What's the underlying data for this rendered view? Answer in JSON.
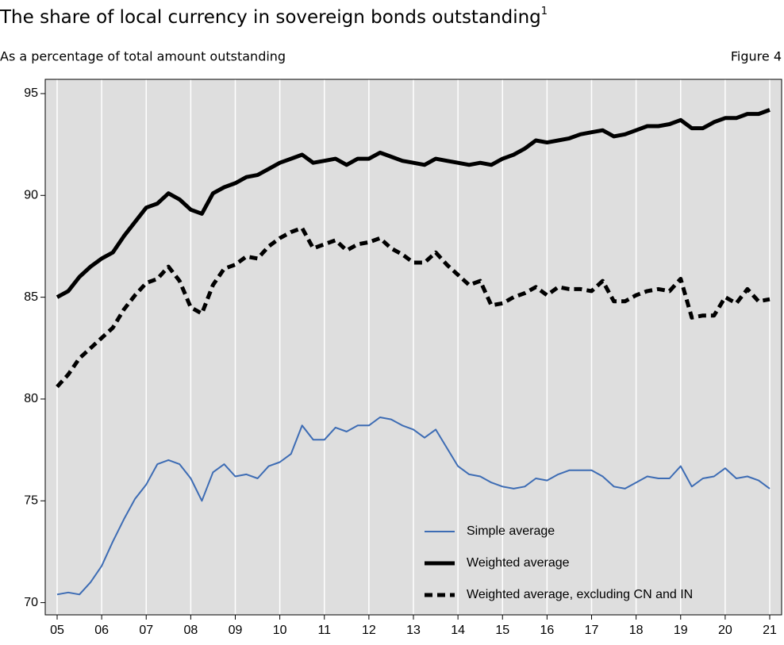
{
  "chart_data": {
    "type": "line",
    "title": "The share of local currency in sovereign bonds outstanding",
    "title_note": "1",
    "subtitle": "As a percentage of total amount outstanding",
    "figure_label": "Figure 4",
    "categories": [
      "05",
      null,
      null,
      null,
      "06",
      null,
      null,
      null,
      "07",
      null,
      null,
      null,
      "08",
      null,
      null,
      null,
      "09",
      null,
      null,
      null,
      "10",
      null,
      null,
      null,
      "11",
      null,
      null,
      null,
      "12",
      null,
      null,
      null,
      "13",
      null,
      null,
      null,
      "14",
      null,
      null,
      null,
      "15",
      null,
      null,
      null,
      "16",
      null,
      null,
      null,
      "17",
      null,
      null,
      null,
      "18",
      null,
      null,
      null,
      "19",
      null,
      null,
      null,
      "20",
      null,
      null,
      null,
      "21"
    ],
    "series": [
      {
        "name": "Simple average",
        "color": "#3d6cb4",
        "width": 2,
        "dash": false,
        "values": [
          70.4,
          70.5,
          70.4,
          71.0,
          71.8,
          73.0,
          74.1,
          75.1,
          75.8,
          76.8,
          77.0,
          76.8,
          76.1,
          75.0,
          76.4,
          76.8,
          76.2,
          76.3,
          76.1,
          76.7,
          76.9,
          77.3,
          78.7,
          78.0,
          78.0,
          78.6,
          78.4,
          78.7,
          78.7,
          79.1,
          79.0,
          78.7,
          78.5,
          78.1,
          78.5,
          77.6,
          76.7,
          76.3,
          76.2,
          75.9,
          75.7,
          75.6,
          75.7,
          76.1,
          76.0,
          76.3,
          76.5,
          76.5,
          76.5,
          76.2,
          75.7,
          75.6,
          75.9,
          76.2,
          76.1,
          76.1,
          76.7,
          75.7,
          76.1,
          76.2,
          76.6,
          76.1,
          76.2,
          76.0,
          75.6
        ]
      },
      {
        "name": "Weighted average",
        "color": "#000000",
        "width": 5,
        "dash": false,
        "values": [
          85.0,
          85.3,
          86.0,
          86.5,
          86.9,
          87.2,
          88.0,
          88.7,
          89.4,
          89.6,
          90.1,
          89.8,
          89.3,
          89.1,
          90.1,
          90.4,
          90.6,
          90.9,
          91.0,
          91.3,
          91.6,
          91.8,
          92.0,
          91.6,
          91.7,
          91.8,
          91.5,
          91.8,
          91.8,
          92.1,
          91.9,
          91.7,
          91.6,
          91.5,
          91.8,
          91.7,
          91.6,
          91.5,
          91.6,
          91.5,
          91.8,
          92.0,
          92.3,
          92.7,
          92.6,
          92.7,
          92.8,
          93.0,
          93.1,
          93.2,
          92.9,
          93.0,
          93.2,
          93.4,
          93.4,
          93.5,
          93.7,
          93.3,
          93.3,
          93.6,
          93.8,
          93.8,
          94.0,
          94.0,
          94.2
        ]
      },
      {
        "name": "Weighted average, excluding CN and IN",
        "color": "#000000",
        "width": 5,
        "dash": true,
        "values": [
          80.6,
          81.2,
          82.0,
          82.5,
          83.0,
          83.5,
          84.4,
          85.1,
          85.7,
          85.9,
          86.5,
          85.8,
          84.5,
          84.2,
          85.6,
          86.4,
          86.6,
          87.0,
          86.9,
          87.5,
          87.9,
          88.2,
          88.4,
          87.4,
          87.6,
          87.8,
          87.3,
          87.6,
          87.7,
          87.9,
          87.4,
          87.1,
          86.7,
          86.7,
          87.2,
          86.6,
          86.1,
          85.6,
          85.8,
          84.6,
          84.7,
          85.0,
          85.2,
          85.5,
          85.1,
          85.5,
          85.4,
          85.4,
          85.3,
          85.8,
          84.8,
          84.8,
          85.1,
          85.3,
          85.4,
          85.3,
          85.9,
          84.0,
          84.1,
          84.1,
          85.0,
          84.7,
          85.4,
          84.8,
          84.9
        ]
      }
    ],
    "ylim": [
      69.4,
      95.7
    ],
    "yticks": [
      70,
      75,
      80,
      85,
      90,
      95
    ],
    "grid": "x",
    "legend": "lower right",
    "background": "#dedede"
  }
}
